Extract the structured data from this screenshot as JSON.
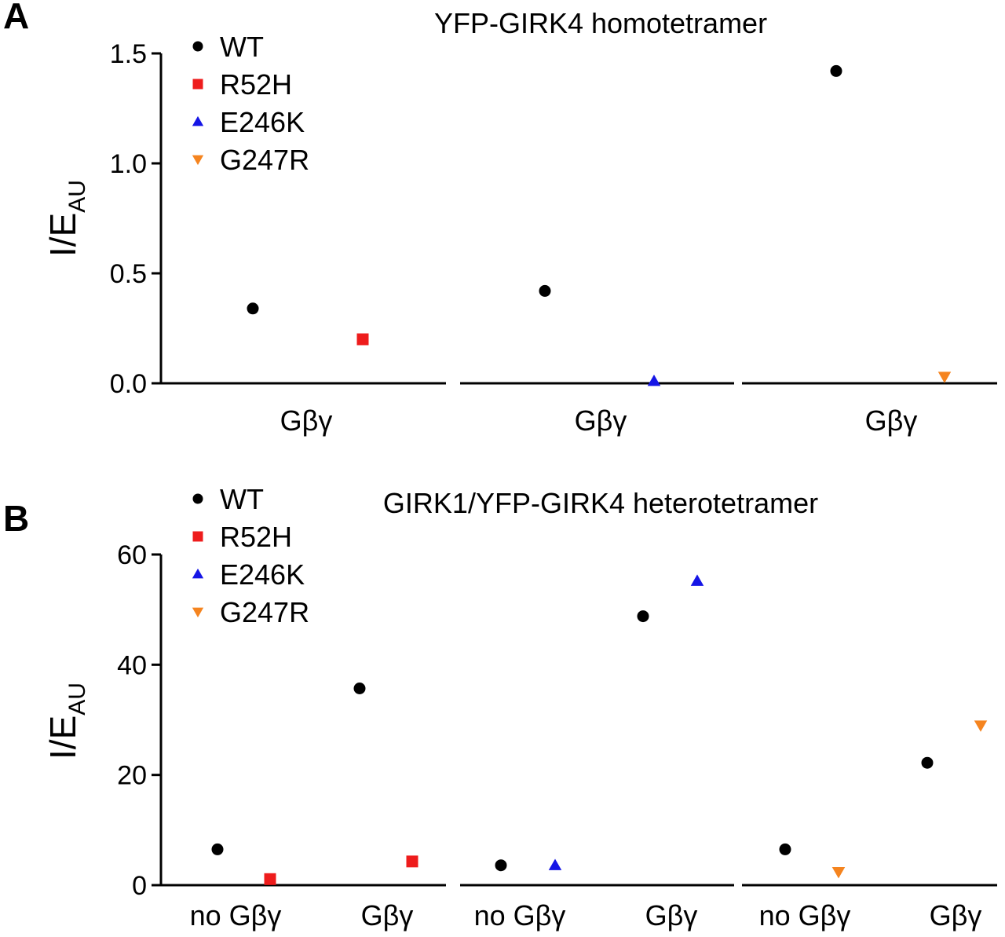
{
  "chart_data": [
    {
      "type": "scatter",
      "panel_letter": "A",
      "title": "YFP-GIRK4 homotetramer",
      "ylabel_main": "I/E",
      "ylabel_sub": "AU",
      "ylim": [
        0,
        1.5
      ],
      "yticks": [
        "0.0",
        "0.5",
        "1.0",
        "1.5"
      ],
      "ytick_values": [
        0,
        0.5,
        1.0,
        1.5
      ],
      "legend_position": "top-left",
      "series": [
        {
          "name": "WT",
          "marker": "circle",
          "color": "#000000"
        },
        {
          "name": "R52H",
          "marker": "square",
          "color": "#ee1c1c"
        },
        {
          "name": "E246K",
          "marker": "triangle-up",
          "color": "#1515e6"
        },
        {
          "name": "G247R",
          "marker": "triangle-down",
          "color": "#f5841f"
        }
      ],
      "groups": [
        {
          "categories": [
            "Gβγ"
          ],
          "points": [
            {
              "series": "WT",
              "category": 0,
              "y": 0.34
            },
            {
              "series": "R52H",
              "category": 0,
              "y": 0.2
            }
          ]
        },
        {
          "categories": [
            "Gβγ"
          ],
          "points": [
            {
              "series": "WT",
              "category": 0,
              "y": 0.42
            },
            {
              "series": "E246K",
              "category": 0,
              "y": 0.01
            }
          ]
        },
        {
          "categories": [
            "Gβγ"
          ],
          "points": [
            {
              "series": "WT",
              "category": 0,
              "y": 1.42
            },
            {
              "series": "G247R",
              "category": 0,
              "y": 0.03
            }
          ]
        }
      ]
    },
    {
      "type": "scatter",
      "panel_letter": "B",
      "title": "GIRK1/YFP-GIRK4 heterotetramer",
      "ylabel_main": "I/E",
      "ylabel_sub": "AU",
      "ylim": [
        0,
        60
      ],
      "yticks": [
        "0",
        "20",
        "40",
        "60"
      ],
      "ytick_values": [
        0,
        20,
        40,
        60
      ],
      "legend_position": "top-left",
      "series": [
        {
          "name": "WT",
          "marker": "circle",
          "color": "#000000"
        },
        {
          "name": "R52H",
          "marker": "square",
          "color": "#ee1c1c"
        },
        {
          "name": "E246K",
          "marker": "triangle-up",
          "color": "#1515e6"
        },
        {
          "name": "G247R",
          "marker": "triangle-down",
          "color": "#f5841f"
        }
      ],
      "groups": [
        {
          "categories": [
            "no Gβγ",
            "Gβγ"
          ],
          "points": [
            {
              "series": "WT",
              "category": 0,
              "y": 6.5
            },
            {
              "series": "R52H",
              "category": 0,
              "y": 1.1
            },
            {
              "series": "WT",
              "category": 1,
              "y": 35.7
            },
            {
              "series": "R52H",
              "category": 1,
              "y": 4.3
            }
          ]
        },
        {
          "categories": [
            "no Gβγ",
            "Gβγ"
          ],
          "points": [
            {
              "series": "WT",
              "category": 0,
              "y": 3.6
            },
            {
              "series": "E246K",
              "category": 0,
              "y": 3.6
            },
            {
              "series": "WT",
              "category": 1,
              "y": 48.8
            },
            {
              "series": "E246K",
              "category": 1,
              "y": 55.2
            }
          ]
        },
        {
          "categories": [
            "no Gβγ",
            "Gβγ"
          ],
          "points": [
            {
              "series": "WT",
              "category": 0,
              "y": 6.5
            },
            {
              "series": "G247R",
              "category": 0,
              "y": 2.4
            },
            {
              "series": "WT",
              "category": 1,
              "y": 22.2
            },
            {
              "series": "G247R",
              "category": 1,
              "y": 29.0
            }
          ]
        }
      ]
    }
  ]
}
